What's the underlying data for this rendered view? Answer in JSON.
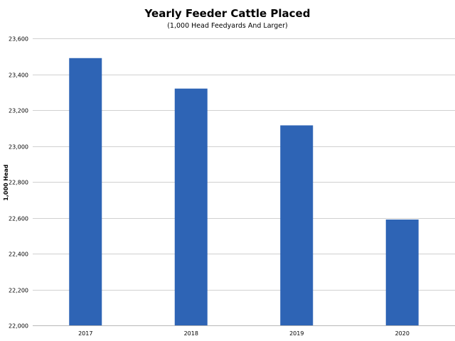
{
  "chart_data": {
    "type": "bar",
    "title": "Yearly Feeder Cattle Placed",
    "subtitle": "(1,000 Head Feedyards And Larger)",
    "xlabel": "",
    "ylabel": "1,000 Head",
    "categories": [
      "2017",
      "2018",
      "2019",
      "2020"
    ],
    "values": [
      23490,
      23320,
      23115,
      22590
    ],
    "ylim": [
      22000,
      23600
    ],
    "yticks": [
      22000,
      22200,
      22400,
      22600,
      22800,
      23000,
      23200,
      23400,
      23600
    ],
    "ytick_labels": [
      "22,000",
      "22,200",
      "22,400",
      "22,600",
      "22,800",
      "23,000",
      "23,200",
      "23,400",
      "23,600"
    ],
    "bar_color": "#2e64b5",
    "grid": true,
    "legend": "none"
  }
}
